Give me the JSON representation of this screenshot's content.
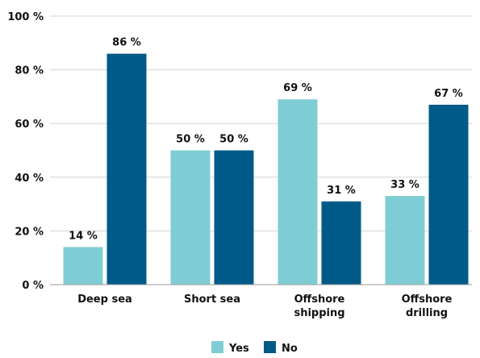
{
  "chart_data": {
    "type": "bar",
    "title": "",
    "xlabel": "",
    "ylabel": "",
    "ylim": [
      0,
      100
    ],
    "yticks": [
      0,
      20,
      40,
      60,
      80,
      100
    ],
    "ytick_labels": [
      "0 %",
      "20 %",
      "40 %",
      "60 %",
      "80 %",
      "100 %"
    ],
    "categories": [
      [
        "Deep sea"
      ],
      [
        "Short sea"
      ],
      [
        "Offshore",
        "shipping"
      ],
      [
        "Offshore",
        "drilling"
      ]
    ],
    "series": [
      {
        "name": "Yes",
        "color": "#7fcdd4",
        "values": [
          14,
          50,
          69,
          33
        ],
        "labels": [
          "14 %",
          "50 %",
          "69 %",
          "33 %"
        ]
      },
      {
        "name": "No",
        "color": "#005a87",
        "values": [
          86,
          50,
          31,
          67
        ],
        "labels": [
          "86 %",
          "50 %",
          "31 %",
          "67 %"
        ]
      }
    ],
    "grid": true,
    "legend_position": "bottom-center"
  },
  "colors": {
    "grid": "#d4d4d4",
    "axis": "#9a9a9a"
  }
}
